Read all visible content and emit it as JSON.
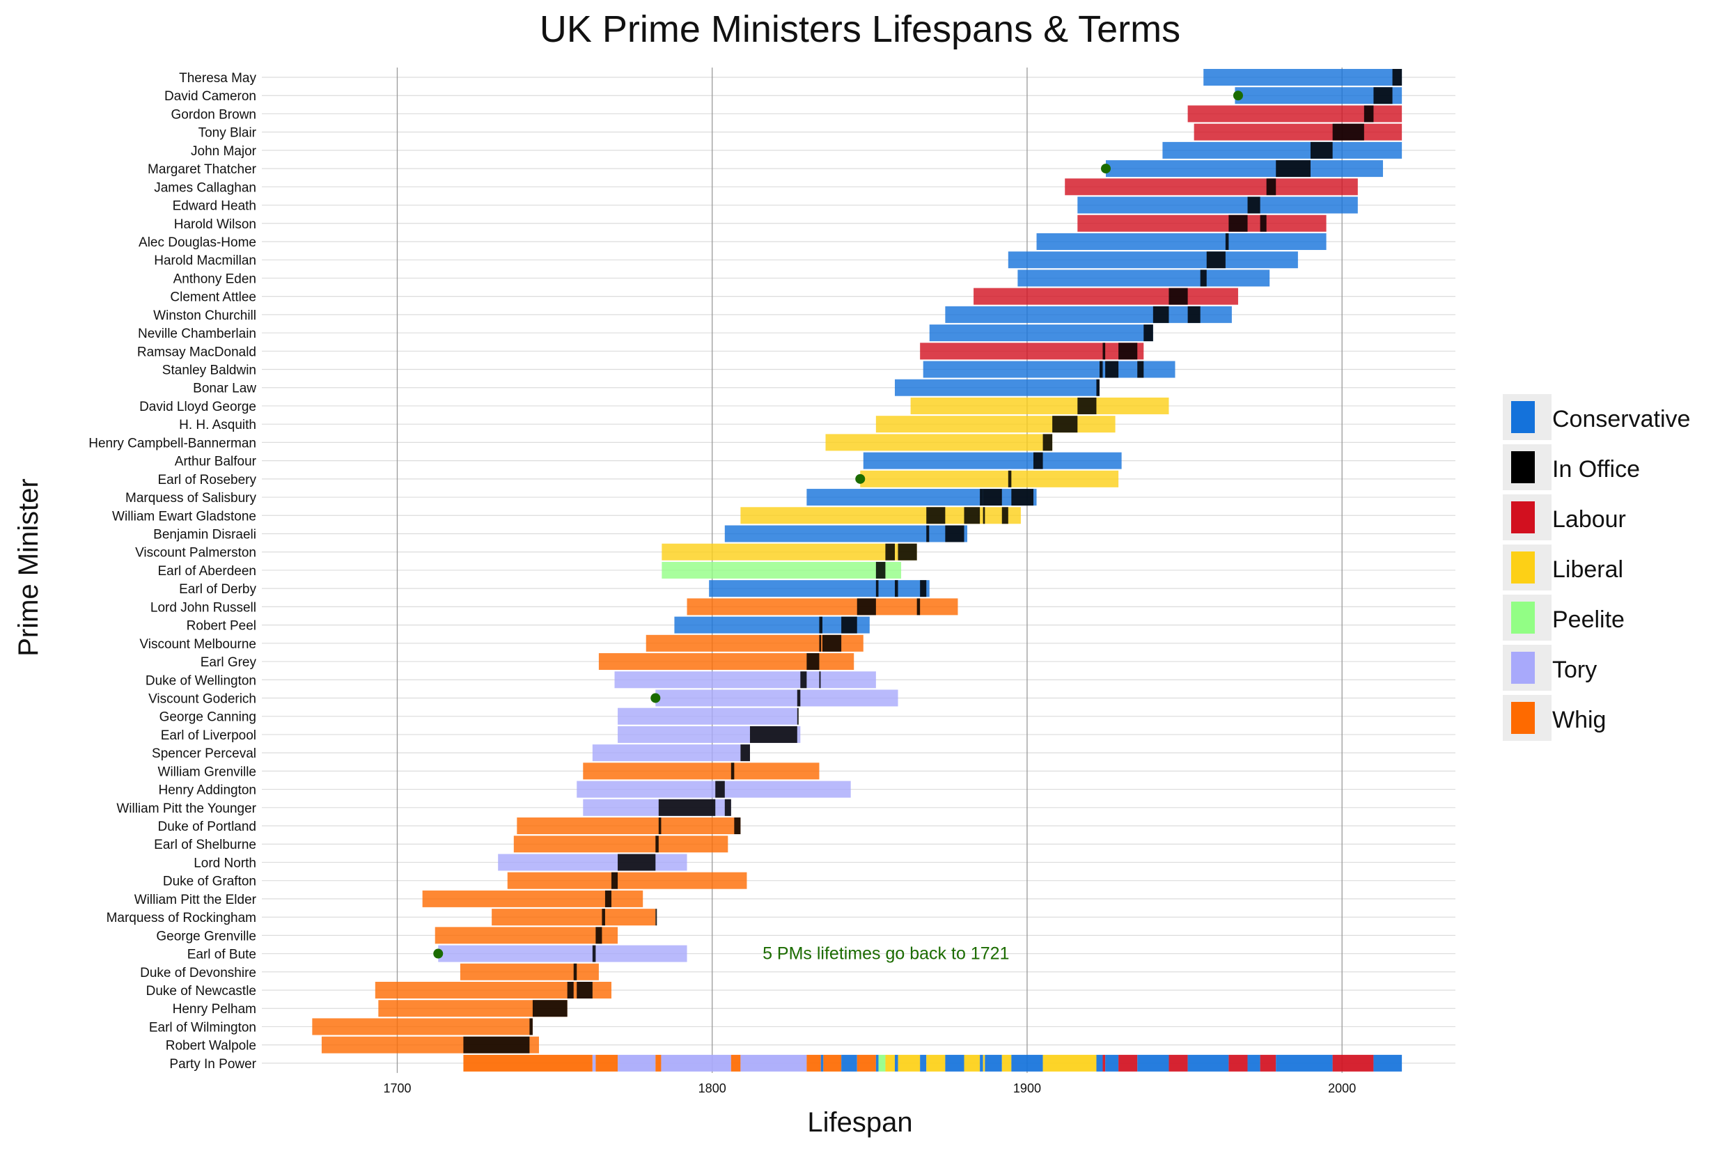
{
  "chart_data": {
    "type": "gantt",
    "title": "UK Prime Ministers Lifespans & Terms",
    "xlabel": "Lifespan",
    "ylabel": "Prime Minister",
    "xlim": [
      1657,
      2036
    ],
    "xticks": [
      1700,
      1800,
      1900,
      2000
    ],
    "colors": {
      "Conservative": "#1472DB",
      "In Office": "#000000",
      "Labour": "#D2101F",
      "Liberal": "#FDD016",
      "Peelite": "#92FE85",
      "Tory": "#A8A9FB",
      "Whig": "#FE6A00"
    },
    "legend": {
      "position": "right",
      "items": [
        "Conservative",
        "In Office",
        "Labour",
        "Liberal",
        "Peelite",
        "Tory",
        "Whig"
      ]
    },
    "annotation": {
      "text": "5 PMs lifetimes go back to 1721",
      "x": 1816,
      "row": "Earl of Bute",
      "color": "#1B6B00"
    },
    "party_in_power_label": "Party In Power",
    "prime_ministers": [
      {
        "name": "Theresa May",
        "born": 1956,
        "died": 2019,
        "party": "Conservative",
        "terms": [
          [
            2016,
            2019
          ]
        ]
      },
      {
        "name": "David Cameron",
        "born": 1966,
        "died": 2019,
        "party": "Conservative",
        "terms": [
          [
            2010,
            2016
          ]
        ],
        "marker": 1967
      },
      {
        "name": "Gordon Brown",
        "born": 1951,
        "died": 2019,
        "party": "Labour",
        "terms": [
          [
            2007,
            2010
          ]
        ]
      },
      {
        "name": "Tony Blair",
        "born": 1953,
        "died": 2019,
        "party": "Labour",
        "terms": [
          [
            1997,
            2007
          ]
        ]
      },
      {
        "name": "John Major",
        "born": 1943,
        "died": 2019,
        "party": "Conservative",
        "terms": [
          [
            1990,
            1997
          ]
        ]
      },
      {
        "name": "Margaret Thatcher",
        "born": 1925,
        "died": 2013,
        "party": "Conservative",
        "terms": [
          [
            1979,
            1990
          ]
        ],
        "marker": 1925
      },
      {
        "name": "James Callaghan",
        "born": 1912,
        "died": 2005,
        "party": "Labour",
        "terms": [
          [
            1976,
            1979
          ]
        ]
      },
      {
        "name": "Edward Heath",
        "born": 1916,
        "died": 2005,
        "party": "Conservative",
        "terms": [
          [
            1970,
            1974
          ]
        ]
      },
      {
        "name": "Harold Wilson",
        "born": 1916,
        "died": 1995,
        "party": "Labour",
        "terms": [
          [
            1964,
            1970
          ],
          [
            1974,
            1976
          ]
        ]
      },
      {
        "name": "Alec Douglas-Home",
        "born": 1903,
        "died": 1995,
        "party": "Conservative",
        "terms": [
          [
            1963,
            1964
          ]
        ]
      },
      {
        "name": "Harold Macmillan",
        "born": 1894,
        "died": 1986,
        "party": "Conservative",
        "terms": [
          [
            1957,
            1963
          ]
        ]
      },
      {
        "name": "Anthony Eden",
        "born": 1897,
        "died": 1977,
        "party": "Conservative",
        "terms": [
          [
            1955,
            1957
          ]
        ]
      },
      {
        "name": "Clement Attlee",
        "born": 1883,
        "died": 1967,
        "party": "Labour",
        "terms": [
          [
            1945,
            1951
          ]
        ]
      },
      {
        "name": "Winston Churchill",
        "born": 1874,
        "died": 1965,
        "party": "Conservative",
        "terms": [
          [
            1940,
            1945
          ],
          [
            1951,
            1955
          ]
        ]
      },
      {
        "name": "Neville Chamberlain",
        "born": 1869,
        "died": 1940,
        "party": "Conservative",
        "terms": [
          [
            1937,
            1940
          ]
        ]
      },
      {
        "name": "Ramsay MacDonald",
        "born": 1866,
        "died": 1937,
        "party": "Labour",
        "terms": [
          [
            1924,
            1924.8
          ],
          [
            1929,
            1935
          ]
        ]
      },
      {
        "name": "Stanley Baldwin",
        "born": 1867,
        "died": 1947,
        "party": "Conservative",
        "terms": [
          [
            1923,
            1924
          ],
          [
            1924.8,
            1929
          ],
          [
            1935,
            1937
          ]
        ]
      },
      {
        "name": "Bonar Law",
        "born": 1858,
        "died": 1923,
        "party": "Conservative",
        "terms": [
          [
            1922,
            1923
          ]
        ]
      },
      {
        "name": "David Lloyd George",
        "born": 1863,
        "died": 1945,
        "party": "Liberal",
        "terms": [
          [
            1916,
            1922
          ]
        ]
      },
      {
        "name": "H. H. Asquith",
        "born": 1852,
        "died": 1928,
        "party": "Liberal",
        "terms": [
          [
            1908,
            1916
          ]
        ]
      },
      {
        "name": "Henry Campbell-Bannerman",
        "born": 1836,
        "died": 1908,
        "party": "Liberal",
        "terms": [
          [
            1905,
            1908
          ]
        ]
      },
      {
        "name": "Arthur Balfour",
        "born": 1848,
        "died": 1930,
        "party": "Conservative",
        "terms": [
          [
            1902,
            1905
          ]
        ]
      },
      {
        "name": "Earl of Rosebery",
        "born": 1847,
        "died": 1929,
        "party": "Liberal",
        "terms": [
          [
            1894,
            1895
          ]
        ],
        "marker": 1847
      },
      {
        "name": "Marquess of Salisbury",
        "born": 1830,
        "died": 1903,
        "party": "Conservative",
        "terms": [
          [
            1885,
            1886
          ],
          [
            1886,
            1892
          ],
          [
            1895,
            1902
          ]
        ]
      },
      {
        "name": "William Ewart Gladstone",
        "born": 1809,
        "died": 1898,
        "party": "Liberal",
        "terms": [
          [
            1868,
            1874
          ],
          [
            1880,
            1885
          ],
          [
            1886,
            1886.6
          ],
          [
            1892,
            1894
          ]
        ]
      },
      {
        "name": "Benjamin Disraeli",
        "born": 1804,
        "died": 1881,
        "party": "Conservative",
        "terms": [
          [
            1868,
            1868.9
          ],
          [
            1874,
            1880
          ]
        ]
      },
      {
        "name": "Viscount Palmerston",
        "born": 1784,
        "died": 1865,
        "party": "Liberal",
        "terms": [
          [
            1855,
            1858
          ],
          [
            1859,
            1865
          ]
        ]
      },
      {
        "name": "Earl of Aberdeen",
        "born": 1784,
        "died": 1860,
        "party": "Peelite",
        "terms": [
          [
            1852,
            1855
          ]
        ]
      },
      {
        "name": "Earl of Derby",
        "born": 1799,
        "died": 1869,
        "party": "Conservative",
        "terms": [
          [
            1852,
            1852.8
          ],
          [
            1858,
            1859
          ],
          [
            1866,
            1868
          ]
        ]
      },
      {
        "name": "Lord John Russell",
        "born": 1792,
        "died": 1878,
        "party": "Whig",
        "terms": [
          [
            1846,
            1852
          ],
          [
            1865,
            1866
          ]
        ]
      },
      {
        "name": "Robert Peel",
        "born": 1788,
        "died": 1850,
        "party": "Conservative",
        "terms": [
          [
            1834,
            1835
          ],
          [
            1841,
            1846
          ]
        ]
      },
      {
        "name": "Viscount Melbourne",
        "born": 1779,
        "died": 1848,
        "party": "Whig",
        "terms": [
          [
            1834,
            1834.6
          ],
          [
            1835,
            1841
          ]
        ]
      },
      {
        "name": "Earl Grey",
        "born": 1764,
        "died": 1845,
        "party": "Whig",
        "terms": [
          [
            1830,
            1834
          ]
        ]
      },
      {
        "name": "Duke of Wellington",
        "born": 1769,
        "died": 1852,
        "party": "Tory",
        "terms": [
          [
            1828,
            1830
          ],
          [
            1834,
            1834.4
          ]
        ]
      },
      {
        "name": "Viscount Goderich",
        "born": 1782,
        "died": 1859,
        "party": "Tory",
        "terms": [
          [
            1827,
            1828
          ]
        ],
        "marker": 1782
      },
      {
        "name": "George Canning",
        "born": 1770,
        "died": 1827,
        "party": "Tory",
        "terms": [
          [
            1827,
            1827.4
          ]
        ]
      },
      {
        "name": "Earl of Liverpool",
        "born": 1770,
        "died": 1828,
        "party": "Tory",
        "terms": [
          [
            1812,
            1827
          ]
        ]
      },
      {
        "name": "Spencer Perceval",
        "born": 1762,
        "died": 1812,
        "party": "Tory",
        "terms": [
          [
            1809,
            1812
          ]
        ]
      },
      {
        "name": "William Grenville",
        "born": 1759,
        "died": 1834,
        "party": "Whig",
        "terms": [
          [
            1806,
            1807
          ]
        ]
      },
      {
        "name": "Henry Addington",
        "born": 1757,
        "died": 1844,
        "party": "Tory",
        "terms": [
          [
            1801,
            1804
          ]
        ]
      },
      {
        "name": "William Pitt the Younger",
        "born": 1759,
        "died": 1806,
        "party": "Tory",
        "terms": [
          [
            1783,
            1801
          ],
          [
            1804,
            1806
          ]
        ]
      },
      {
        "name": "Duke of Portland",
        "born": 1738,
        "died": 1809,
        "party": "Whig",
        "terms": [
          [
            1783,
            1783.8
          ],
          [
            1807,
            1809
          ]
        ]
      },
      {
        "name": "Earl of Shelburne",
        "born": 1737,
        "died": 1805,
        "party": "Whig",
        "terms": [
          [
            1782,
            1783
          ]
        ]
      },
      {
        "name": "Lord North",
        "born": 1732,
        "died": 1792,
        "party": "Tory",
        "terms": [
          [
            1770,
            1782
          ]
        ]
      },
      {
        "name": "Duke of Grafton",
        "born": 1735,
        "died": 1811,
        "party": "Whig",
        "terms": [
          [
            1768,
            1770
          ]
        ]
      },
      {
        "name": "William Pitt the Elder",
        "born": 1708,
        "died": 1778,
        "party": "Whig",
        "terms": [
          [
            1766,
            1768
          ]
        ]
      },
      {
        "name": "Marquess of Rockingham",
        "born": 1730,
        "died": 1782,
        "party": "Whig",
        "terms": [
          [
            1765,
            1766
          ],
          [
            1782,
            1782.4
          ]
        ]
      },
      {
        "name": "George Grenville",
        "born": 1712,
        "died": 1770,
        "party": "Whig",
        "terms": [
          [
            1763,
            1765
          ]
        ]
      },
      {
        "name": "Earl of Bute",
        "born": 1713,
        "died": 1792,
        "party": "Tory",
        "terms": [
          [
            1762,
            1763
          ]
        ],
        "marker": 1713
      },
      {
        "name": "Duke of Devonshire",
        "born": 1720,
        "died": 1764,
        "party": "Whig",
        "terms": [
          [
            1756,
            1757
          ]
        ]
      },
      {
        "name": "Duke of Newcastle",
        "born": 1693,
        "died": 1768,
        "party": "Whig",
        "terms": [
          [
            1754,
            1756
          ],
          [
            1757,
            1762
          ]
        ]
      },
      {
        "name": "Henry Pelham",
        "born": 1694,
        "died": 1754,
        "party": "Whig",
        "terms": [
          [
            1743,
            1754
          ]
        ]
      },
      {
        "name": "Earl of Wilmington",
        "born": 1673,
        "died": 1743,
        "party": "Whig",
        "terms": [
          [
            1742,
            1743
          ]
        ]
      },
      {
        "name": "Robert Walpole",
        "born": 1676,
        "died": 1745,
        "party": "Whig",
        "terms": [
          [
            1721,
            1742
          ]
        ]
      }
    ],
    "party_in_power": [
      {
        "start": 1721,
        "end": 1762,
        "party": "Whig"
      },
      {
        "start": 1762,
        "end": 1763,
        "party": "Tory"
      },
      {
        "start": 1763,
        "end": 1770,
        "party": "Whig"
      },
      {
        "start": 1770,
        "end": 1782,
        "party": "Tory"
      },
      {
        "start": 1782,
        "end": 1783.8,
        "party": "Whig"
      },
      {
        "start": 1783.8,
        "end": 1806,
        "party": "Tory"
      },
      {
        "start": 1806,
        "end": 1809,
        "party": "Whig"
      },
      {
        "start": 1809,
        "end": 1830,
        "party": "Tory"
      },
      {
        "start": 1830,
        "end": 1834.5,
        "party": "Whig"
      },
      {
        "start": 1834.5,
        "end": 1835.3,
        "party": "Conservative"
      },
      {
        "start": 1835.3,
        "end": 1841,
        "party": "Whig"
      },
      {
        "start": 1841,
        "end": 1846,
        "party": "Conservative"
      },
      {
        "start": 1846,
        "end": 1852,
        "party": "Whig"
      },
      {
        "start": 1852,
        "end": 1852.8,
        "party": "Conservative"
      },
      {
        "start": 1852.8,
        "end": 1855,
        "party": "Peelite"
      },
      {
        "start": 1855,
        "end": 1858,
        "party": "Liberal"
      },
      {
        "start": 1858,
        "end": 1859,
        "party": "Conservative"
      },
      {
        "start": 1859,
        "end": 1866,
        "party": "Liberal"
      },
      {
        "start": 1866,
        "end": 1868,
        "party": "Conservative"
      },
      {
        "start": 1868,
        "end": 1874,
        "party": "Liberal"
      },
      {
        "start": 1874,
        "end": 1880,
        "party": "Conservative"
      },
      {
        "start": 1880,
        "end": 1885,
        "party": "Liberal"
      },
      {
        "start": 1885,
        "end": 1886,
        "party": "Conservative"
      },
      {
        "start": 1886,
        "end": 1886.6,
        "party": "Liberal"
      },
      {
        "start": 1886.6,
        "end": 1892,
        "party": "Conservative"
      },
      {
        "start": 1892,
        "end": 1895,
        "party": "Liberal"
      },
      {
        "start": 1895,
        "end": 1905,
        "party": "Conservative"
      },
      {
        "start": 1905,
        "end": 1922,
        "party": "Liberal"
      },
      {
        "start": 1922,
        "end": 1924,
        "party": "Conservative"
      },
      {
        "start": 1924,
        "end": 1924.8,
        "party": "Labour"
      },
      {
        "start": 1924.8,
        "end": 1929,
        "party": "Conservative"
      },
      {
        "start": 1929,
        "end": 1935,
        "party": "Labour"
      },
      {
        "start": 1935,
        "end": 1945,
        "party": "Conservative"
      },
      {
        "start": 1945,
        "end": 1951,
        "party": "Labour"
      },
      {
        "start": 1951,
        "end": 1964,
        "party": "Conservative"
      },
      {
        "start": 1964,
        "end": 1970,
        "party": "Labour"
      },
      {
        "start": 1970,
        "end": 1974,
        "party": "Conservative"
      },
      {
        "start": 1974,
        "end": 1979,
        "party": "Labour"
      },
      {
        "start": 1979,
        "end": 1997,
        "party": "Conservative"
      },
      {
        "start": 1997,
        "end": 2010,
        "party": "Labour"
      },
      {
        "start": 2010,
        "end": 2019,
        "party": "Conservative"
      }
    ]
  }
}
